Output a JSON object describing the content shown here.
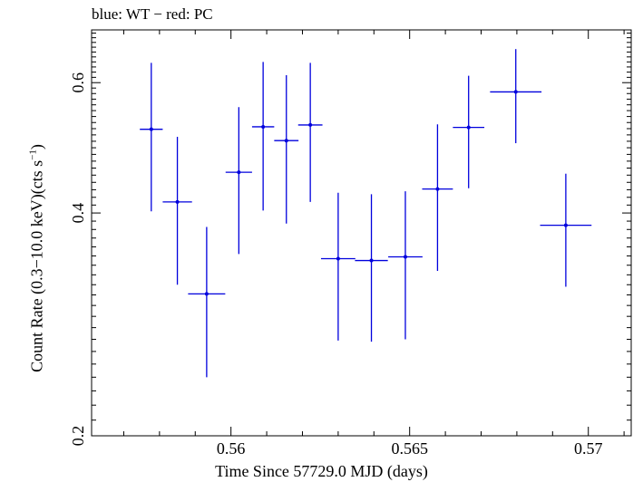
{
  "chart_data": {
    "type": "scatter",
    "title": "blue: WT − red: PC",
    "xlabel": "Time Since 57729.0 MJD (days)",
    "ylabel_main": "Count Rate (0.3−10.0 keV)(cts s",
    "ylabel_sup": "−1",
    "ylabel_end": ")",
    "xlim": [
      0.5561,
      0.5712
    ],
    "ylim": [
      0.2,
      0.707
    ],
    "y_scale": "log",
    "xticks": [
      0.56,
      0.565,
      0.57
    ],
    "xtick_labels": [
      "0.56",
      "0.565",
      "0.57"
    ],
    "yticks": [
      0.2,
      0.4,
      0.6
    ],
    "ytick_labels": [
      "0.2",
      "0.4",
      "0.6"
    ],
    "series": [
      {
        "color": "#0000dd",
        "points": [
          {
            "x": 0.55777,
            "xerr": 0.00032,
            "y": 0.519,
            "ylo": 0.402,
            "yhi": 0.638
          },
          {
            "x": 0.5585,
            "xerr": 0.00041,
            "y": 0.414,
            "ylo": 0.32,
            "yhi": 0.507
          },
          {
            "x": 0.55932,
            "xerr": 0.00052,
            "y": 0.311,
            "ylo": 0.24,
            "yhi": 0.383
          },
          {
            "x": 0.56022,
            "xerr": 0.00037,
            "y": 0.454,
            "ylo": 0.352,
            "yhi": 0.556
          },
          {
            "x": 0.5609,
            "xerr": 0.00031,
            "y": 0.523,
            "ylo": 0.403,
            "yhi": 0.64
          },
          {
            "x": 0.56155,
            "xerr": 0.00034,
            "y": 0.501,
            "ylo": 0.387,
            "yhi": 0.614
          },
          {
            "x": 0.56222,
            "xerr": 0.00034,
            "y": 0.526,
            "ylo": 0.414,
            "yhi": 0.638
          },
          {
            "x": 0.563,
            "xerr": 0.00048,
            "y": 0.347,
            "ylo": 0.269,
            "yhi": 0.426
          },
          {
            "x": 0.56393,
            "xerr": 0.00046,
            "y": 0.345,
            "ylo": 0.268,
            "yhi": 0.424
          },
          {
            "x": 0.56488,
            "xerr": 0.00048,
            "y": 0.349,
            "ylo": 0.27,
            "yhi": 0.428
          },
          {
            "x": 0.56578,
            "xerr": 0.00043,
            "y": 0.431,
            "ylo": 0.334,
            "yhi": 0.527
          },
          {
            "x": 0.56665,
            "xerr": 0.00044,
            "y": 0.522,
            "ylo": 0.432,
            "yhi": 0.613
          },
          {
            "x": 0.56797,
            "xerr": 0.00072,
            "y": 0.583,
            "ylo": 0.497,
            "yhi": 0.666
          },
          {
            "x": 0.56937,
            "xerr": 0.00072,
            "y": 0.385,
            "ylo": 0.318,
            "yhi": 0.452
          }
        ]
      }
    ]
  }
}
